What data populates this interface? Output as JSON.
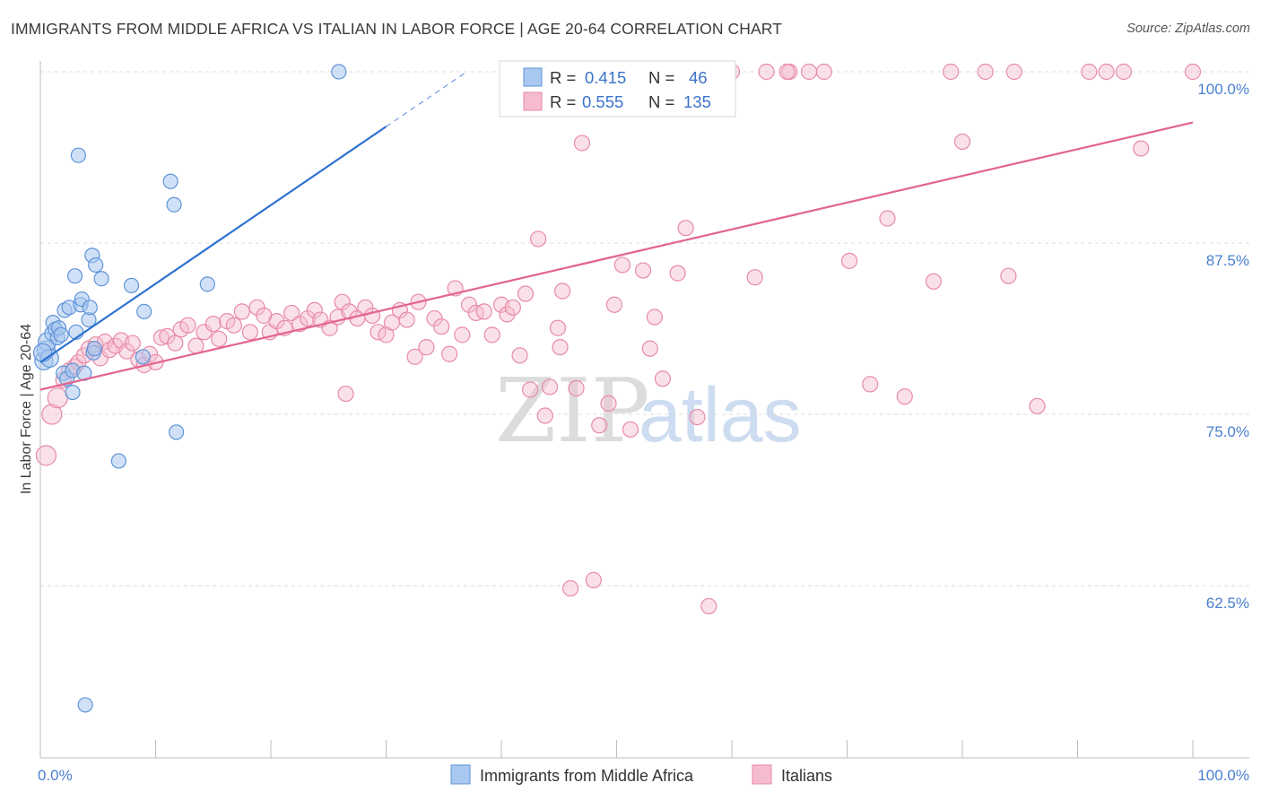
{
  "title": "IMMIGRANTS FROM MIDDLE AFRICA VS ITALIAN IN LABOR FORCE | AGE 20-64 CORRELATION CHART",
  "source": "Source: ZipAtlas.com",
  "watermark": {
    "zip": "ZIP",
    "atlas": "atlas"
  },
  "legend": {
    "r_label": "R =",
    "n_label": "N =",
    "blue": {
      "r": "0.415",
      "n": "46"
    },
    "pink": {
      "r": "0.555",
      "n": "135"
    }
  },
  "bottom_legend": {
    "blue": "Immigrants from Middle Africa",
    "pink": "Italians"
  },
  "colors": {
    "blue_fill": "#a9c8f0",
    "blue_stroke": "#5f93d8",
    "blue_line": "#2f72d0",
    "pink_fill": "#f5bccd",
    "pink_stroke": "#e88aa8",
    "pink_line": "#e2648e",
    "tick_text": "#4a7fd0",
    "grid": "#dcdcdc"
  },
  "chart_data": {
    "type": "scatter",
    "xlabel": "",
    "ylabel": "In Labor Force | Age 20-64",
    "xlim": [
      0,
      100
    ],
    "ylim": [
      50,
      100
    ],
    "x_tick_labels": [
      "0.0%",
      "100.0%"
    ],
    "y_ticks": [
      62.5,
      75.0,
      87.5,
      100.0
    ],
    "y_tick_labels": [
      "62.5%",
      "75.0%",
      "87.5%",
      "100.0%"
    ],
    "grid": "horizontal dashed",
    "series": [
      {
        "name": "Immigrants from Middle Africa",
        "color": "blue",
        "trend": {
          "x": [
            0,
            30
          ],
          "y": [
            78.8,
            96.0
          ],
          "dashed_to": [
            37,
            100.0
          ]
        },
        "points": [
          [
            0.3,
            78.9
          ],
          [
            0.5,
            79.7
          ],
          [
            0.6,
            80.3
          ],
          [
            0.8,
            79.1
          ],
          [
            1.0,
            80.9
          ],
          [
            1.1,
            81.7
          ],
          [
            1.3,
            81.2
          ],
          [
            1.5,
            80.6
          ],
          [
            1.6,
            81.3
          ],
          [
            1.8,
            80.8
          ],
          [
            2.0,
            78.0
          ],
          [
            2.1,
            82.6
          ],
          [
            2.3,
            77.6
          ],
          [
            2.5,
            82.8
          ],
          [
            2.8,
            78.2
          ],
          [
            2.8,
            76.6
          ],
          [
            3.0,
            85.1
          ],
          [
            3.1,
            81.0
          ],
          [
            3.3,
            93.9
          ],
          [
            3.5,
            83.0
          ],
          [
            3.6,
            83.4
          ],
          [
            3.8,
            78.0
          ],
          [
            4.2,
            81.9
          ],
          [
            4.3,
            82.8
          ],
          [
            4.5,
            86.6
          ],
          [
            4.6,
            79.5
          ],
          [
            4.7,
            79.8
          ],
          [
            4.8,
            85.9
          ],
          [
            5.3,
            84.9
          ],
          [
            6.8,
            71.6
          ],
          [
            7.9,
            84.4
          ],
          [
            8.9,
            79.2
          ],
          [
            9.0,
            82.5
          ],
          [
            11.3,
            92.0
          ],
          [
            11.6,
            90.3
          ],
          [
            11.8,
            73.7
          ],
          [
            14.5,
            84.5
          ],
          [
            25.9,
            100.0
          ],
          [
            3.9,
            53.8
          ],
          [
            0.2,
            79.5
          ]
        ]
      },
      {
        "name": "Italians",
        "color": "pink",
        "trend": {
          "x": [
            0,
            100
          ],
          "y": [
            76.8,
            96.3
          ]
        },
        "points": [
          [
            0.5,
            72.0
          ],
          [
            1.0,
            75.0
          ],
          [
            1.5,
            76.2
          ],
          [
            2.0,
            77.5
          ],
          [
            2.5,
            78.2
          ],
          [
            3.0,
            78.5
          ],
          [
            3.3,
            78.8
          ],
          [
            3.8,
            79.3
          ],
          [
            4.2,
            79.8
          ],
          [
            4.8,
            80.1
          ],
          [
            5.2,
            79.1
          ],
          [
            5.6,
            80.3
          ],
          [
            6.0,
            79.7
          ],
          [
            6.5,
            80.0
          ],
          [
            7.0,
            80.4
          ],
          [
            7.5,
            79.6
          ],
          [
            8.0,
            80.2
          ],
          [
            8.5,
            79.0
          ],
          [
            9.0,
            78.6
          ],
          [
            9.5,
            79.4
          ],
          [
            10.0,
            78.8
          ],
          [
            10.5,
            80.6
          ],
          [
            11.0,
            80.7
          ],
          [
            11.7,
            80.2
          ],
          [
            12.2,
            81.2
          ],
          [
            12.8,
            81.5
          ],
          [
            13.5,
            80.0
          ],
          [
            14.2,
            81.0
          ],
          [
            15.0,
            81.6
          ],
          [
            15.5,
            80.5
          ],
          [
            16.2,
            81.8
          ],
          [
            16.8,
            81.5
          ],
          [
            17.5,
            82.5
          ],
          [
            18.2,
            81.0
          ],
          [
            18.8,
            82.8
          ],
          [
            19.4,
            82.2
          ],
          [
            19.9,
            81.0
          ],
          [
            20.5,
            81.8
          ],
          [
            21.2,
            81.3
          ],
          [
            21.8,
            82.4
          ],
          [
            22.5,
            81.6
          ],
          [
            23.2,
            82.0
          ],
          [
            23.8,
            82.6
          ],
          [
            24.3,
            81.9
          ],
          [
            25.1,
            81.3
          ],
          [
            25.8,
            82.1
          ],
          [
            26.2,
            83.2
          ],
          [
            26.8,
            82.5
          ],
          [
            27.5,
            82.0
          ],
          [
            28.2,
            82.8
          ],
          [
            28.8,
            82.2
          ],
          [
            29.3,
            81.0
          ],
          [
            30.0,
            80.8
          ],
          [
            30.5,
            81.7
          ],
          [
            31.2,
            82.6
          ],
          [
            31.8,
            81.9
          ],
          [
            32.5,
            79.2
          ],
          [
            32.8,
            83.2
          ],
          [
            33.5,
            79.9
          ],
          [
            34.2,
            82.0
          ],
          [
            34.8,
            81.4
          ],
          [
            35.5,
            79.4
          ],
          [
            36.0,
            84.2
          ],
          [
            36.6,
            80.8
          ],
          [
            37.2,
            83.0
          ],
          [
            37.8,
            82.4
          ],
          [
            38.5,
            82.5
          ],
          [
            39.2,
            80.8
          ],
          [
            40.0,
            83.0
          ],
          [
            40.5,
            82.3
          ],
          [
            41.0,
            82.8
          ],
          [
            41.6,
            79.3
          ],
          [
            42.1,
            83.8
          ],
          [
            42.5,
            76.8
          ],
          [
            43.2,
            87.8
          ],
          [
            43.8,
            74.9
          ],
          [
            44.2,
            77.0
          ],
          [
            44.9,
            81.3
          ],
          [
            45.1,
            79.9
          ],
          [
            45.3,
            84.0
          ],
          [
            46.0,
            62.3
          ],
          [
            46.5,
            76.9
          ],
          [
            47.0,
            94.8
          ],
          [
            48.0,
            62.9
          ],
          [
            48.5,
            74.2
          ],
          [
            49.3,
            75.8
          ],
          [
            49.8,
            83.0
          ],
          [
            50.5,
            85.9
          ],
          [
            51.2,
            73.9
          ],
          [
            52.3,
            85.5
          ],
          [
            52.9,
            79.8
          ],
          [
            53.3,
            82.1
          ],
          [
            54.0,
            77.6
          ],
          [
            55.3,
            85.3
          ],
          [
            56.0,
            88.6
          ],
          [
            57.0,
            74.8
          ],
          [
            58.0,
            61.0
          ],
          [
            60.0,
            100.0
          ],
          [
            62.0,
            85.0
          ],
          [
            65.0,
            100.0
          ],
          [
            68.0,
            100.0
          ],
          [
            70.2,
            86.2
          ],
          [
            72.0,
            77.2
          ],
          [
            73.5,
            89.3
          ],
          [
            75.0,
            76.3
          ],
          [
            77.5,
            84.7
          ],
          [
            79.0,
            100.0
          ],
          [
            80.0,
            94.9
          ],
          [
            82.0,
            100.0
          ],
          [
            84.0,
            85.1
          ],
          [
            84.5,
            100.0
          ],
          [
            86.5,
            75.6
          ],
          [
            91.0,
            100.0
          ],
          [
            92.5,
            100.0
          ],
          [
            94.0,
            100.0
          ],
          [
            95.5,
            94.4
          ],
          [
            100.0,
            100.0
          ],
          [
            48.5,
            100.0
          ],
          [
            52.0,
            100.0
          ],
          [
            55.5,
            100.0
          ],
          [
            57.5,
            100.0
          ],
          [
            63.0,
            100.0
          ],
          [
            64.8,
            100.0
          ],
          [
            66.7,
            100.0
          ],
          [
            26.5,
            76.5
          ]
        ]
      }
    ]
  }
}
